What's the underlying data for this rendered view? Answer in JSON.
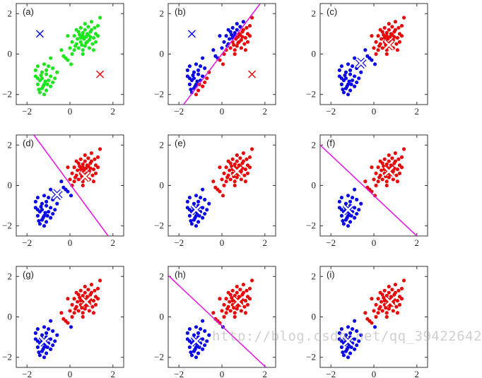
{
  "chart_data": {
    "type": "scatter",
    "xlim": [
      -2.5,
      2.5
    ],
    "ylim": [
      -2.5,
      2.5
    ],
    "xticks": [
      -2,
      0,
      2
    ],
    "yticks": [
      -2,
      0,
      2
    ],
    "grid": false,
    "colors": {
      "unassigned": "#1ee61e",
      "cluster1": "#0a0ae6",
      "cluster2": "#e60a0a",
      "boundary": "#e01ee0"
    },
    "points": [
      [
        0.2,
        0.9
      ],
      [
        0.3,
        0.5
      ],
      [
        0.4,
        1.1
      ],
      [
        0.5,
        0.6
      ],
      [
        0.6,
        0.9
      ],
      [
        0.7,
        0.4
      ],
      [
        0.8,
        1.0
      ],
      [
        0.9,
        0.7
      ],
      [
        1.0,
        1.2
      ],
      [
        1.1,
        0.8
      ],
      [
        0.6,
        0.2
      ],
      [
        0.4,
        0.3
      ],
      [
        0.9,
        0.3
      ],
      [
        1.2,
        1.0
      ],
      [
        1.3,
        1.4
      ],
      [
        0.5,
        1.3
      ],
      [
        0.7,
        1.5
      ],
      [
        1.0,
        1.6
      ],
      [
        1.4,
        1.8
      ],
      [
        0.2,
        0.2
      ],
      [
        0.1,
        0.6
      ],
      [
        0.8,
        0.6
      ],
      [
        0.65,
        0.75
      ],
      [
        0.75,
        0.85
      ],
      [
        0.85,
        0.95
      ],
      [
        0.55,
        0.45
      ],
      [
        1.05,
        0.5
      ],
      [
        1.15,
        1.3
      ],
      [
        0.35,
        0.75
      ],
      [
        0.95,
        1.1
      ],
      [
        0.45,
        0.95
      ],
      [
        0.7,
        1.2
      ],
      [
        1.2,
        0.6
      ],
      [
        0.3,
        1.2
      ],
      [
        0.0,
        0.3
      ],
      [
        -0.1,
        0.9
      ],
      [
        0.6,
        0.0
      ],
      [
        1.1,
        0.2
      ],
      [
        0.85,
        1.35
      ],
      [
        0.5,
        0.8
      ],
      [
        0.75,
        0.55
      ],
      [
        1.3,
        0.9
      ],
      [
        0.25,
        0.4
      ],
      [
        0.95,
        0.85
      ],
      [
        0.6,
        1.05
      ],
      [
        -0.3,
        -0.1
      ],
      [
        -0.4,
        0.2
      ],
      [
        -0.1,
        -0.3
      ],
      [
        0.05,
        -0.5
      ],
      [
        -0.2,
        -0.2
      ],
      [
        0.1,
        0.0
      ],
      [
        -1.5,
        -0.6
      ],
      [
        -1.3,
        -0.9
      ],
      [
        -1.1,
        -1.0
      ],
      [
        -1.4,
        -1.3
      ],
      [
        -1.2,
        -1.5
      ],
      [
        -1.0,
        -1.3
      ],
      [
        -1.6,
        -1.1
      ],
      [
        -1.3,
        -1.7
      ],
      [
        -1.1,
        -1.8
      ],
      [
        -0.9,
        -1.6
      ],
      [
        -1.4,
        -1.9
      ],
      [
        -1.2,
        -2.0
      ],
      [
        -0.8,
        -0.7
      ],
      [
        -0.9,
        -1.1
      ],
      [
        -1.5,
        -1.5
      ],
      [
        -1.3,
        -1.2
      ],
      [
        -1.0,
        -0.6
      ],
      [
        -0.7,
        -1.2
      ],
      [
        -0.6,
        -0.9
      ],
      [
        -1.6,
        -0.8
      ],
      [
        -1.2,
        -0.5
      ],
      [
        -0.9,
        -0.2
      ],
      [
        -1.35,
        -1.05
      ],
      [
        -1.15,
        -1.35
      ],
      [
        -1.25,
        -1.6
      ],
      [
        -1.05,
        -1.5
      ],
      [
        -1.45,
        -1.75
      ],
      [
        -0.8,
        -1.4
      ],
      [
        -1.5,
        -1.2
      ],
      [
        -1.1,
        -0.8
      ]
    ],
    "panels": [
      {
        "label": "(a)",
        "centroids": [
          [
            -1.4,
            1.0
          ],
          [
            1.4,
            -1.0
          ]
        ],
        "assigned": false,
        "boundary": false,
        "marker": "plain"
      },
      {
        "label": "(b)",
        "centroids": [
          [
            -1.4,
            1.0
          ],
          [
            1.4,
            -1.0
          ]
        ],
        "assigned": true,
        "boundary": true,
        "marker": "plain"
      },
      {
        "label": "(c)",
        "centroids": [
          [
            -0.6,
            -0.45
          ],
          [
            0.7,
            0.45
          ]
        ],
        "assigned": true,
        "boundary": false,
        "marker": "white"
      },
      {
        "label": "(d)",
        "centroids": [
          [
            -0.6,
            -0.45
          ],
          [
            0.7,
            0.45
          ]
        ],
        "assigned": true,
        "boundary": true,
        "marker": "white"
      },
      {
        "label": "(e)",
        "centroids": [
          [
            -1.2,
            -1.2
          ],
          [
            0.7,
            0.7
          ]
        ],
        "assigned": true,
        "boundary": false,
        "marker": "white"
      },
      {
        "label": "(f)",
        "centroids": [
          [
            -1.2,
            -1.2
          ],
          [
            0.7,
            0.7
          ]
        ],
        "assigned": true,
        "boundary": true,
        "marker": "white"
      },
      {
        "label": "(g)",
        "centroids": [
          [
            -1.2,
            -1.2
          ],
          [
            0.75,
            0.75
          ]
        ],
        "assigned": true,
        "boundary": false,
        "marker": "white"
      },
      {
        "label": "(h)",
        "centroids": [
          [
            -1.2,
            -1.2
          ],
          [
            0.75,
            0.75
          ]
        ],
        "assigned": true,
        "boundary": true,
        "marker": "white"
      },
      {
        "label": "(i)",
        "centroids": [
          [
            -1.2,
            -1.2
          ],
          [
            0.75,
            0.75
          ]
        ],
        "assigned": true,
        "boundary": false,
        "marker": "white"
      }
    ]
  },
  "watermark": "http://blog.csdn.net/qq_39422642"
}
